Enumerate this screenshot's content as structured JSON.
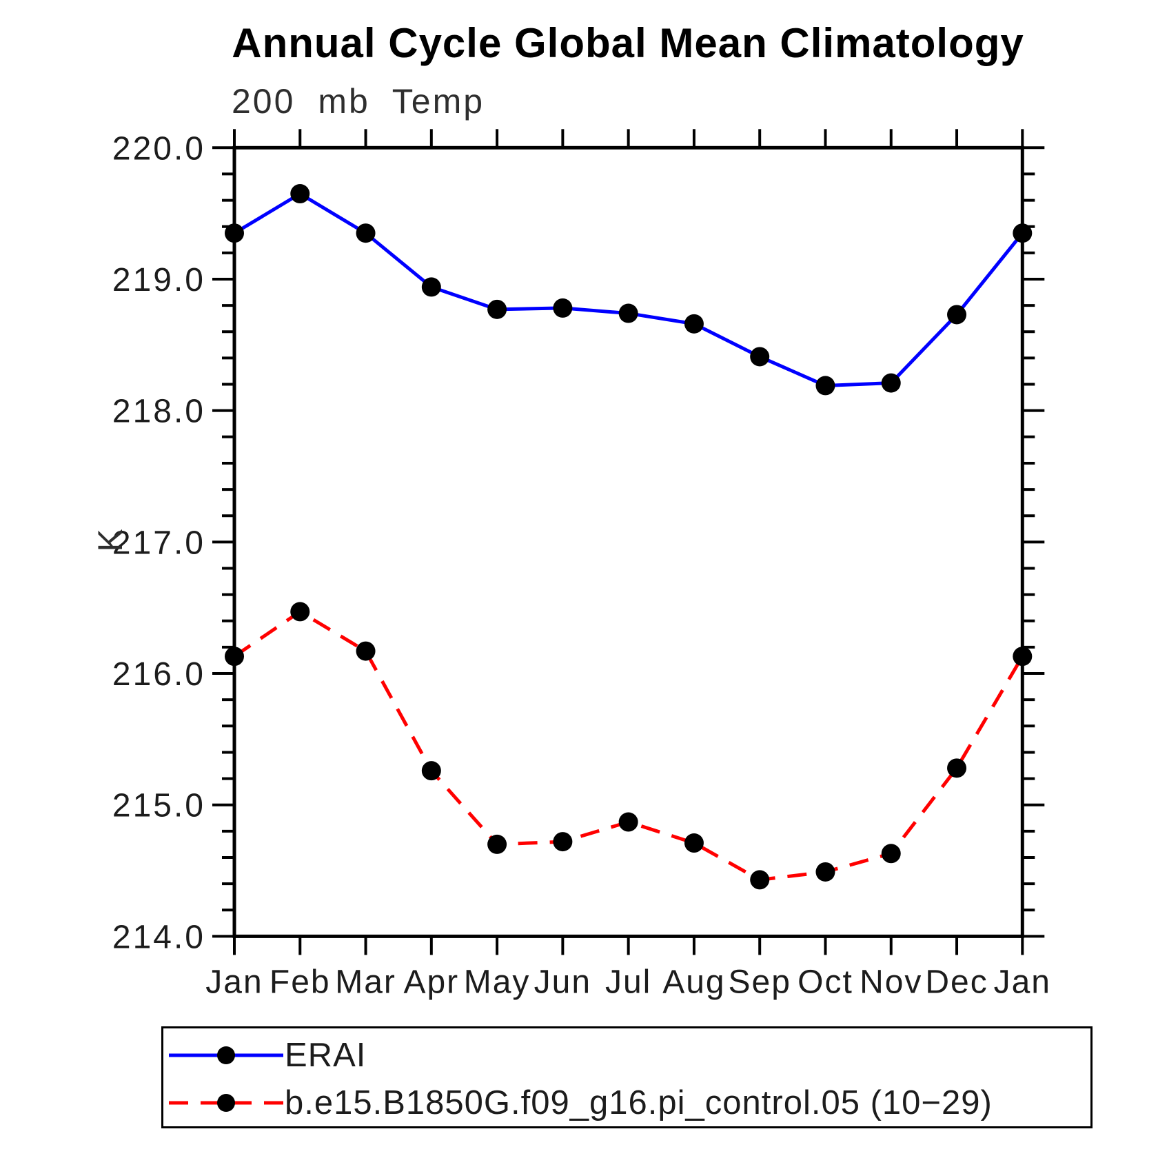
{
  "chart_data": {
    "type": "line",
    "title": "Annual Cycle Global Mean Climatology",
    "subtitle": "200 mb Temp",
    "ylabel": "K",
    "ylim": [
      214.0,
      220.0
    ],
    "y_major_ticks": [
      {
        "value": 220.0,
        "label": "220.0"
      },
      {
        "value": 219.0,
        "label": "219.0"
      },
      {
        "value": 218.0,
        "label": "218.0"
      },
      {
        "value": 217.0,
        "label": "217.0"
      },
      {
        "value": 216.0,
        "label": "216.0"
      },
      {
        "value": 215.0,
        "label": "215.0"
      },
      {
        "value": 214.0,
        "label": "214.0"
      }
    ],
    "y_minor_step": 0.2,
    "categories": [
      "Jan",
      "Feb",
      "Mar",
      "Apr",
      "May",
      "Jun",
      "Jul",
      "Aug",
      "Sep",
      "Oct",
      "Nov",
      "Dec",
      "Jan"
    ],
    "series": [
      {
        "id": "erai",
        "name": "ERAI",
        "color": "#0000ff",
        "line_style": "solid",
        "dash": "",
        "marker": "filled-circle",
        "values": [
          219.35,
          219.65,
          219.35,
          218.94,
          218.77,
          218.78,
          218.74,
          218.66,
          218.41,
          218.19,
          218.21,
          218.73,
          219.35
        ]
      },
      {
        "id": "model",
        "name": "b.e15.B1850G.f09_g16.pi_control.05 (10−29)",
        "color": "#ff0000",
        "line_style": "dashed",
        "dash": "28 18",
        "marker": "filled-circle",
        "values": [
          216.13,
          216.47,
          216.17,
          215.26,
          214.7,
          214.72,
          214.87,
          214.71,
          214.43,
          214.49,
          214.63,
          215.28,
          216.13
        ]
      }
    ],
    "marker_color": "#000000",
    "axis_color": "#000000",
    "grid": "off",
    "legend_position": "bottom-left-box"
  }
}
